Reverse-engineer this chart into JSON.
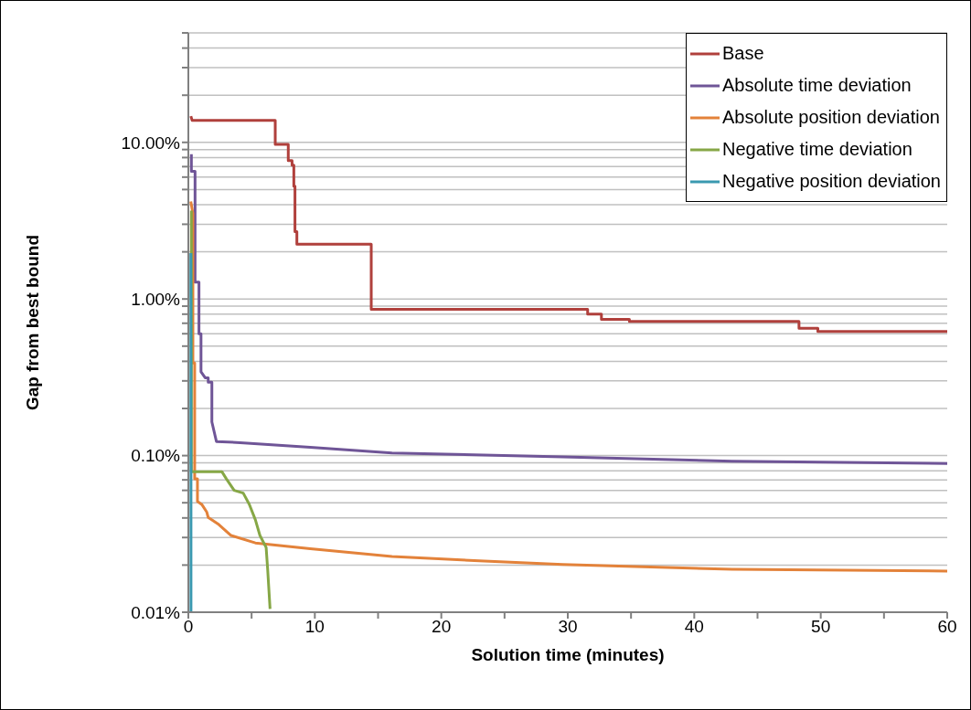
{
  "chart_data": {
    "type": "line",
    "xlabel": "Solution time (minutes)",
    "ylabel": "Gap from best bound",
    "log": "y",
    "grid": "y",
    "legend": "top right",
    "marker": "none",
    "line_style": "solid",
    "xlim": [
      0,
      60
    ],
    "xticks": [
      0,
      {
        "value": 5,
        "label": null
      },
      10,
      {
        "value": 15,
        "label": null
      },
      20,
      {
        "value": 25,
        "label": null
      },
      30,
      {
        "value": 35,
        "label": null
      },
      40,
      {
        "value": 45,
        "label": null
      },
      50,
      {
        "value": 55,
        "label": null
      },
      60
    ],
    "ylim": [
      0.0001,
      0.5
    ],
    "yticks": [
      {
        "value": 0.0001,
        "label": "0.01%"
      },
      {
        "value": 0.0002,
        "label": null
      },
      {
        "value": 0.0003,
        "label": null
      },
      {
        "value": 0.0004,
        "label": null
      },
      {
        "value": 0.0005,
        "label": null
      },
      {
        "value": 0.0006,
        "label": null
      },
      {
        "value": 0.0007,
        "label": null
      },
      {
        "value": 0.0008,
        "label": null
      },
      {
        "value": 0.0009,
        "label": null
      },
      {
        "value": 0.001,
        "label": "0.10%"
      },
      {
        "value": 0.002,
        "label": null
      },
      {
        "value": 0.003,
        "label": null
      },
      {
        "value": 0.004,
        "label": null
      },
      {
        "value": 0.005,
        "label": null
      },
      {
        "value": 0.006,
        "label": null
      },
      {
        "value": 0.007,
        "label": null
      },
      {
        "value": 0.008,
        "label": null
      },
      {
        "value": 0.009,
        "label": null
      },
      {
        "value": 0.01,
        "label": "1.00%"
      },
      {
        "value": 0.02,
        "label": null
      },
      {
        "value": 0.03,
        "label": null
      },
      {
        "value": 0.04,
        "label": null
      },
      {
        "value": 0.05,
        "label": null
      },
      {
        "value": 0.06,
        "label": null
      },
      {
        "value": 0.07,
        "label": null
      },
      {
        "value": 0.08,
        "label": null
      },
      {
        "value": 0.09,
        "label": null
      },
      {
        "value": 0.1,
        "label": "10.00%"
      },
      {
        "value": 0.2,
        "label": null
      },
      {
        "value": 0.3,
        "label": null
      },
      {
        "value": 0.4,
        "label": null
      },
      {
        "value": 0.5,
        "label": null
      }
    ],
    "series": [
      {
        "name": "Base",
        "color": "#b0403c",
        "x": [
          0.2,
          0.3,
          6.87,
          6.87,
          7.9,
          7.9,
          8.2,
          8.2,
          8.34,
          8.34,
          8.43,
          8.43,
          8.58,
          8.58,
          14.46,
          14.46,
          31.57,
          31.57,
          32.66,
          32.66,
          34.87,
          34.87,
          48.28,
          48.28,
          49.77,
          49.77,
          60
        ],
        "values": [
          0.147,
          0.138,
          0.138,
          0.097,
          0.097,
          0.0765,
          0.0765,
          0.0716,
          0.0716,
          0.0526,
          0.0526,
          0.0269,
          0.0269,
          0.0224,
          0.0224,
          0.0086,
          0.0086,
          0.008,
          0.008,
          0.0074,
          0.0074,
          0.0072,
          0.0072,
          0.0065,
          0.0065,
          0.0062,
          0.0062
        ]
      },
      {
        "name": "Absolute time deviation",
        "color": "#6f5597",
        "x": [
          0.24,
          0.24,
          0.53,
          0.53,
          0.84,
          0.84,
          1.0,
          1.0,
          1.33,
          1.57,
          1.57,
          1.86,
          1.86,
          2.22,
          4.1,
          9.64,
          16.1,
          29.6,
          43.0,
          60
        ],
        "values": [
          0.084,
          0.0654,
          0.0654,
          0.0128,
          0.0128,
          0.006,
          0.006,
          0.00343,
          0.00314,
          0.00314,
          0.00294,
          0.00294,
          0.00164,
          0.00123,
          0.00121,
          0.00113,
          0.00104,
          0.00098,
          0.00092,
          0.00089
        ]
      },
      {
        "name": "Absolute position deviation",
        "color": "#e3823a",
        "x": [
          0.19,
          0.36,
          0.36,
          0.5,
          0.5,
          0.72,
          0.72,
          1.08,
          1.45,
          1.57,
          2.41,
          3.38,
          5.3,
          9.64,
          16.1,
          23.4,
          29.6,
          43.0,
          60
        ],
        "values": [
          0.0419,
          0.0352,
          0.0039,
          0.0039,
          0.00071,
          0.00071,
          0.00051,
          0.000486,
          0.000437,
          0.000403,
          0.000363,
          0.000309,
          0.000277,
          0.000254,
          0.000227,
          0.000212,
          0.000202,
          0.000188,
          0.000183
        ]
      },
      {
        "name": "Negative time deviation",
        "color": "#86a746",
        "x": [
          0.24,
          0.24,
          2.65,
          3.01,
          3.62,
          4.34,
          4.82,
          5.3,
          5.66,
          6.15,
          6.27,
          6.46
        ],
        "values": [
          0.0367,
          0.00079,
          0.00079,
          0.00071,
          0.0006,
          0.000576,
          0.000488,
          0.000389,
          0.000309,
          0.000259,
          0.000188,
          0.000105
        ]
      },
      {
        "name": "Negative position deviation",
        "color": "#3a99b0",
        "x": [
          0.2,
          0.21
        ],
        "values": [
          0.0196,
          0.0001
        ]
      }
    ]
  }
}
